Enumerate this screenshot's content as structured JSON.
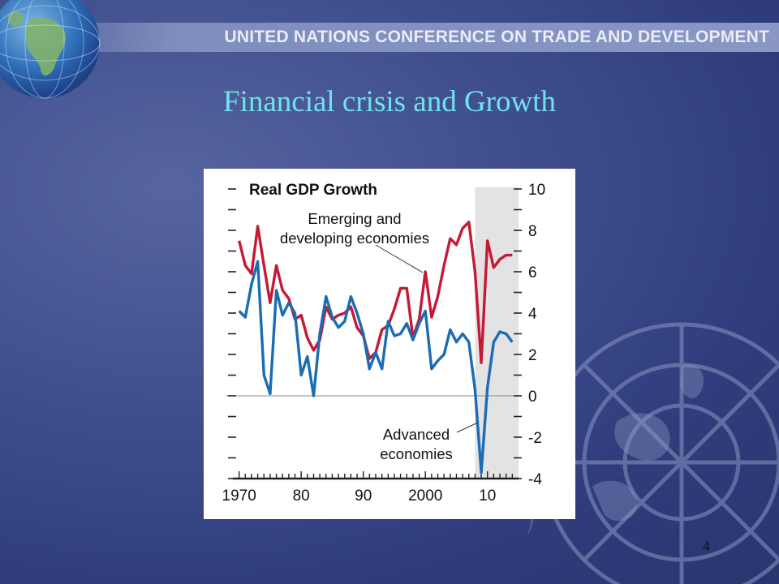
{
  "header": {
    "banner": "UNITED NATIONS CONFERENCE ON TRADE AND DEVELOPMENT"
  },
  "slide": {
    "title": "Financial crisis and Growth",
    "page_number": "4"
  },
  "colors": {
    "emerging": "#c41a35",
    "advanced": "#1b6cb3",
    "shade": "#e3e3e3",
    "title": "#6fe2ee"
  },
  "icons": [
    "globe-logo-icon",
    "un-emblem-icon"
  ],
  "chart_data": {
    "type": "line",
    "title": "Real GDP Growth",
    "x_ticks": [
      1970,
      1980,
      1990,
      2000,
      2010
    ],
    "x_tick_labels": [
      "1970",
      "80",
      "90",
      "2000",
      "10"
    ],
    "y_ticks": [
      -4,
      -2,
      0,
      2,
      4,
      6,
      8,
      10
    ],
    "xlim": [
      1969,
      2015
    ],
    "ylim": [
      -4,
      10
    ],
    "y_axis_side": "right",
    "shaded_region": [
      2008,
      2015
    ],
    "grid": false,
    "x": [
      1970,
      1971,
      1972,
      1973,
      1974,
      1975,
      1976,
      1977,
      1978,
      1979,
      1980,
      1981,
      1982,
      1983,
      1984,
      1985,
      1986,
      1987,
      1988,
      1989,
      1990,
      1991,
      1992,
      1993,
      1994,
      1995,
      1996,
      1997,
      1998,
      1999,
      2000,
      2001,
      2002,
      2003,
      2004,
      2005,
      2006,
      2007,
      2008,
      2009,
      2010,
      2011,
      2012,
      2013,
      2014
    ],
    "series": [
      {
        "name": "Emerging and developing economies",
        "label_lines": [
          "Emerging and",
          "developing economies"
        ],
        "values": [
          7.5,
          6.3,
          5.9,
          8.2,
          6.3,
          4.5,
          6.3,
          5.1,
          4.7,
          3.7,
          3.9,
          2.8,
          2.2,
          2.7,
          4.3,
          3.7,
          3.9,
          4.0,
          4.3,
          3.3,
          2.9,
          1.8,
          2.1,
          3.2,
          3.4,
          4.2,
          5.2,
          5.2,
          2.8,
          3.7,
          6.0,
          3.8,
          4.8,
          6.3,
          7.6,
          7.3,
          8.1,
          8.4,
          6.0,
          1.6,
          7.5,
          6.2,
          6.6,
          6.8,
          6.8
        ]
      },
      {
        "name": "Advanced economies",
        "label_lines": [
          "Advanced",
          "economies"
        ],
        "values": [
          4.1,
          3.8,
          5.4,
          6.5,
          1.0,
          0.1,
          5.1,
          3.9,
          4.5,
          4.0,
          1.0,
          1.9,
          0.0,
          3.0,
          4.8,
          3.8,
          3.3,
          3.6,
          4.8,
          4.0,
          3.0,
          1.3,
          2.1,
          1.3,
          3.6,
          2.9,
          3.0,
          3.5,
          2.7,
          3.5,
          4.1,
          1.3,
          1.7,
          2.0,
          3.2,
          2.6,
          3.0,
          2.6,
          0.3,
          -3.7,
          0.4,
          2.6,
          3.1,
          3.0,
          2.6
        ]
      }
    ]
  }
}
